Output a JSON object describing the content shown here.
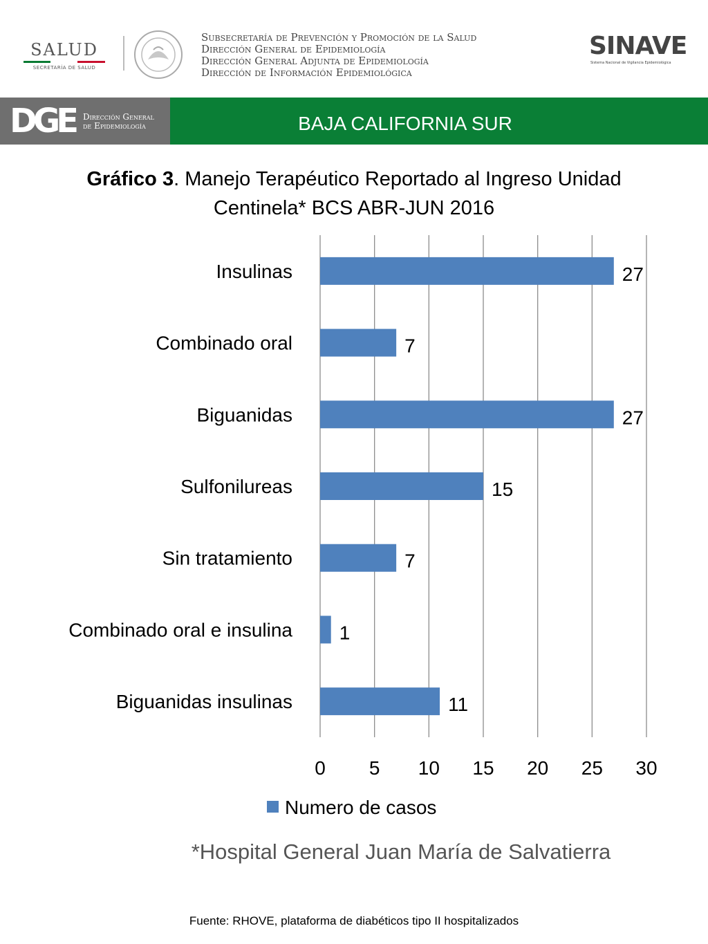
{
  "header": {
    "salud_logo": "SALUD",
    "salud_sub": "SECRETARÍA DE SALUD",
    "agency_lines": [
      "Subsecretaría de Prevención y Promoción de la Salud",
      "Dirección General de Epidemiología",
      "Dirección General Adjunta de Epidemiología",
      "Dirección de Información Epidemiológica"
    ],
    "sinave_logo": "SINAVE",
    "sinave_sub": "Sistema Nacional de Vigilancia Epidemiológica"
  },
  "band": {
    "dge_mark": "DGE",
    "dge_text_line1": "Dirección General",
    "dge_text_line2": "de Epidemiología",
    "region": "BAJA CALIFORNIA SUR",
    "colors": {
      "left": "#6f6f6f",
      "right": "#0a7f36"
    }
  },
  "title": {
    "prefix": "Gráfico 3",
    "line1_rest": ". Manejo Terapéutico Reportado al Ingreso Unidad",
    "line2": "Centinela* BCS ABR-JUN 2016"
  },
  "chart_data": {
    "type": "bar",
    "orientation": "horizontal",
    "categories": [
      "Insulinas",
      "Combinado oral",
      "Biguanidas",
      "Sulfonilureas",
      "Sin tratamiento",
      "Combinado oral e insulina",
      "Biguanidas insulinas"
    ],
    "series": [
      {
        "name": "Numero de casos",
        "values": [
          27,
          7,
          27,
          15,
          7,
          1,
          11
        ],
        "color": "#4f81bd"
      }
    ],
    "xlim": [
      0,
      30
    ],
    "xticks": [
      0,
      5,
      10,
      15,
      20,
      25,
      30
    ],
    "grid": true,
    "legend_position": "bottom"
  },
  "footnote": "*Hospital General Juan María de Salvatierra",
  "source": "Fuente: RHOVE, plataforma de diabéticos tipo II hospitalizados"
}
